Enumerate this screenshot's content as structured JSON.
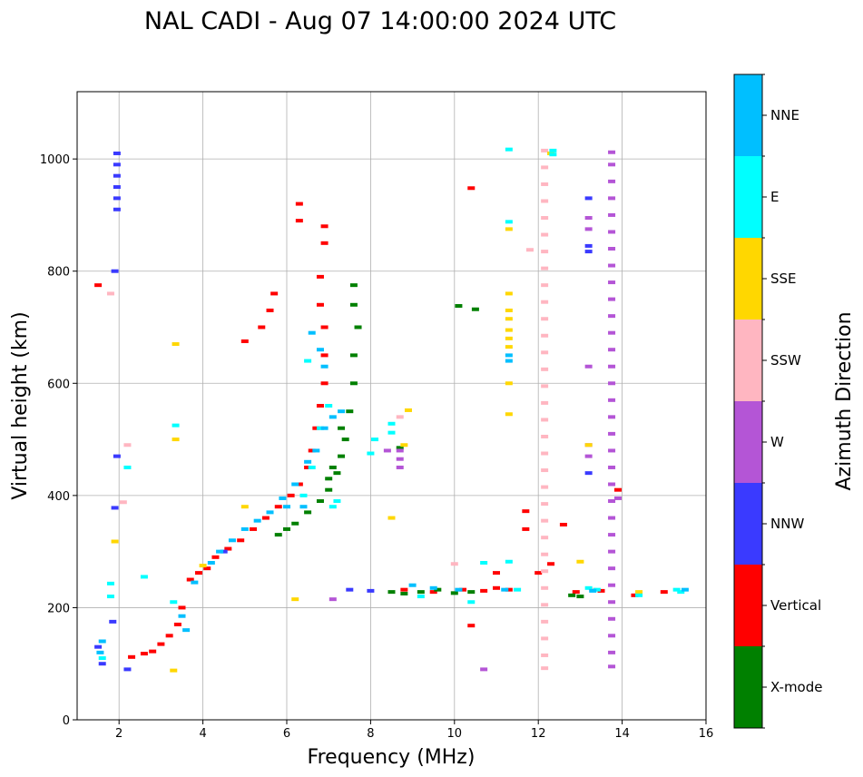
{
  "chart_data": {
    "type": "scatter",
    "title": "NAL CADI - Aug 07 14:00:00 2024 UTC",
    "xlabel": "Frequency (MHz)",
    "ylabel": "Virtual height (km)",
    "xlim": [
      1,
      16
    ],
    "ylim": [
      0,
      1120
    ],
    "xticks": [
      2,
      4,
      6,
      8,
      10,
      12,
      14,
      16
    ],
    "yticks": [
      0,
      200,
      400,
      600,
      800,
      1000
    ],
    "grid": true,
    "colorbar": {
      "label": "Azimuth Direction",
      "categories": [
        {
          "name": "X-mode",
          "color": "#008000"
        },
        {
          "name": "Vertical",
          "color": "#ff0000"
        },
        {
          "name": "NNW",
          "color": "#3a3aff"
        },
        {
          "name": "W",
          "color": "#b455d6"
        },
        {
          "name": "SSW",
          "color": "#ffb6c1"
        },
        {
          "name": "SSE",
          "color": "#ffd700"
        },
        {
          "name": "E",
          "color": "#00ffff"
        },
        {
          "name": "NNE",
          "color": "#00bfff"
        }
      ]
    },
    "series": [
      {
        "name": "Vertical",
        "color": "#ff0000",
        "points": [
          [
            2.3,
            112
          ],
          [
            2.6,
            118
          ],
          [
            2.8,
            122
          ],
          [
            3.0,
            135
          ],
          [
            3.2,
            150
          ],
          [
            3.4,
            170
          ],
          [
            3.5,
            200
          ],
          [
            3.7,
            250
          ],
          [
            3.9,
            262
          ],
          [
            4.1,
            270
          ],
          [
            4.3,
            290
          ],
          [
            4.6,
            305
          ],
          [
            4.9,
            320
          ],
          [
            5.2,
            340
          ],
          [
            5.5,
            360
          ],
          [
            5.8,
            380
          ],
          [
            6.1,
            400
          ],
          [
            6.3,
            420
          ],
          [
            6.5,
            450
          ],
          [
            6.6,
            480
          ],
          [
            6.7,
            520
          ],
          [
            6.8,
            560
          ],
          [
            6.9,
            600
          ],
          [
            6.9,
            650
          ],
          [
            6.9,
            700
          ],
          [
            6.8,
            740
          ],
          [
            6.8,
            790
          ],
          [
            6.9,
            850
          ],
          [
            6.3,
            890
          ],
          [
            6.3,
            920
          ],
          [
            6.9,
            880
          ],
          [
            5.4,
            700
          ],
          [
            5.6,
            730
          ],
          [
            5.7,
            760
          ],
          [
            5.0,
            675
          ],
          [
            1.5,
            775
          ],
          [
            8.8,
            232
          ],
          [
            9.5,
            228
          ],
          [
            10.2,
            232
          ],
          [
            10.7,
            230
          ],
          [
            11.0,
            235
          ],
          [
            11.3,
            232
          ],
          [
            12.9,
            228
          ],
          [
            13.5,
            230
          ],
          [
            14.3,
            222
          ],
          [
            15.0,
            228
          ],
          [
            11.0,
            262
          ],
          [
            12.0,
            262
          ],
          [
            12.3,
            278
          ],
          [
            11.7,
            340
          ],
          [
            11.7,
            372
          ],
          [
            12.6,
            348
          ],
          [
            10.4,
            168
          ],
          [
            10.4,
            948
          ],
          [
            13.9,
            410
          ]
        ]
      },
      {
        "name": "X-mode",
        "color": "#008000",
        "points": [
          [
            5.8,
            330
          ],
          [
            6.0,
            340
          ],
          [
            6.2,
            350
          ],
          [
            6.5,
            370
          ],
          [
            6.8,
            390
          ],
          [
            7.0,
            410
          ],
          [
            7.2,
            440
          ],
          [
            7.3,
            470
          ],
          [
            7.4,
            500
          ],
          [
            7.5,
            550
          ],
          [
            7.6,
            600
          ],
          [
            7.6,
            650
          ],
          [
            7.7,
            700
          ],
          [
            7.6,
            740
          ],
          [
            7.6,
            775
          ],
          [
            7.1,
            450
          ],
          [
            7.3,
            520
          ],
          [
            8.5,
            228
          ],
          [
            8.8,
            225
          ],
          [
            9.2,
            228
          ],
          [
            9.6,
            232
          ],
          [
            10.0,
            226
          ],
          [
            10.4,
            228
          ],
          [
            12.8,
            222
          ],
          [
            13.0,
            220
          ],
          [
            8.7,
            485
          ],
          [
            10.1,
            738
          ],
          [
            10.5,
            732
          ],
          [
            7.0,
            430
          ]
        ]
      },
      {
        "name": "NNW",
        "color": "#3a3aff",
        "points": [
          [
            1.95,
            1010
          ],
          [
            1.95,
            990
          ],
          [
            1.95,
            970
          ],
          [
            1.95,
            950
          ],
          [
            1.95,
            930
          ],
          [
            1.95,
            910
          ],
          [
            1.9,
            800
          ],
          [
            1.5,
            130
          ],
          [
            1.6,
            100
          ],
          [
            2.2,
            90
          ],
          [
            1.85,
            175
          ],
          [
            7.5,
            232
          ],
          [
            8.0,
            230
          ],
          [
            13.2,
            440
          ],
          [
            13.2,
            835
          ],
          [
            13.2,
            845
          ],
          [
            13.2,
            930
          ],
          [
            4.5,
            300
          ],
          [
            1.95,
            470
          ],
          [
            1.9,
            378
          ]
        ]
      },
      {
        "name": "W",
        "color": "#b455d6",
        "points": [
          [
            13.75,
            1012
          ],
          [
            13.75,
            990
          ],
          [
            13.75,
            960
          ],
          [
            13.75,
            930
          ],
          [
            13.75,
            900
          ],
          [
            13.75,
            870
          ],
          [
            13.75,
            840
          ],
          [
            13.75,
            810
          ],
          [
            13.75,
            780
          ],
          [
            13.75,
            750
          ],
          [
            13.75,
            720
          ],
          [
            13.75,
            690
          ],
          [
            13.75,
            660
          ],
          [
            13.75,
            630
          ],
          [
            13.75,
            600
          ],
          [
            13.75,
            570
          ],
          [
            13.75,
            540
          ],
          [
            13.75,
            510
          ],
          [
            13.75,
            480
          ],
          [
            13.75,
            450
          ],
          [
            13.75,
            420
          ],
          [
            13.75,
            390
          ],
          [
            13.75,
            360
          ],
          [
            13.75,
            330
          ],
          [
            13.75,
            300
          ],
          [
            13.75,
            270
          ],
          [
            13.75,
            240
          ],
          [
            13.75,
            210
          ],
          [
            13.75,
            180
          ],
          [
            13.75,
            150
          ],
          [
            13.75,
            120
          ],
          [
            13.75,
            95
          ],
          [
            8.7,
            480
          ],
          [
            8.7,
            465
          ],
          [
            8.7,
            450
          ],
          [
            13.2,
            490
          ],
          [
            13.2,
            470
          ],
          [
            13.2,
            630
          ],
          [
            13.2,
            895
          ],
          [
            13.2,
            875
          ],
          [
            8.4,
            480
          ],
          [
            7.1,
            215
          ],
          [
            10.7,
            90
          ],
          [
            13.9,
            395
          ]
        ]
      },
      {
        "name": "SSW",
        "color": "#ffb6c1",
        "points": [
          [
            12.15,
            1015
          ],
          [
            12.15,
            985
          ],
          [
            12.15,
            955
          ],
          [
            12.15,
            925
          ],
          [
            12.15,
            895
          ],
          [
            12.15,
            865
          ],
          [
            12.15,
            835
          ],
          [
            12.15,
            805
          ],
          [
            12.15,
            775
          ],
          [
            12.15,
            745
          ],
          [
            12.15,
            715
          ],
          [
            12.15,
            685
          ],
          [
            12.15,
            655
          ],
          [
            12.15,
            625
          ],
          [
            12.15,
            595
          ],
          [
            12.15,
            565
          ],
          [
            12.15,
            535
          ],
          [
            12.15,
            505
          ],
          [
            12.15,
            475
          ],
          [
            12.15,
            445
          ],
          [
            12.15,
            415
          ],
          [
            12.15,
            385
          ],
          [
            12.15,
            355
          ],
          [
            12.15,
            325
          ],
          [
            12.15,
            295
          ],
          [
            12.15,
            265
          ],
          [
            12.15,
            235
          ],
          [
            12.15,
            205
          ],
          [
            12.15,
            175
          ],
          [
            12.15,
            145
          ],
          [
            12.15,
            115
          ],
          [
            12.15,
            92
          ],
          [
            11.8,
            838
          ],
          [
            10.0,
            278
          ],
          [
            8.7,
            540
          ],
          [
            1.8,
            760
          ],
          [
            2.2,
            490
          ],
          [
            2.1,
            388
          ],
          [
            13.3,
            232
          ]
        ]
      },
      {
        "name": "SSE",
        "color": "#ffd700",
        "points": [
          [
            11.3,
            760
          ],
          [
            11.3,
            730
          ],
          [
            11.3,
            715
          ],
          [
            11.3,
            695
          ],
          [
            11.3,
            680
          ],
          [
            11.3,
            665
          ],
          [
            11.3,
            600
          ],
          [
            11.3,
            545
          ],
          [
            11.3,
            875
          ],
          [
            3.35,
            670
          ],
          [
            3.35,
            500
          ],
          [
            3.3,
            88
          ],
          [
            1.9,
            318
          ],
          [
            6.2,
            215
          ],
          [
            8.5,
            360
          ],
          [
            8.9,
            552
          ],
          [
            8.8,
            490
          ],
          [
            14.4,
            228
          ],
          [
            13.2,
            490
          ],
          [
            13.0,
            282
          ],
          [
            12.3,
            1010
          ],
          [
            4.0,
            275
          ],
          [
            5.0,
            380
          ]
        ]
      },
      {
        "name": "E",
        "color": "#00ffff",
        "points": [
          [
            12.35,
            1015
          ],
          [
            12.35,
            1008
          ],
          [
            11.3,
            888
          ],
          [
            11.3,
            1017
          ],
          [
            8.5,
            512
          ],
          [
            8.5,
            528
          ],
          [
            8.1,
            500
          ],
          [
            8.0,
            475
          ],
          [
            7.2,
            390
          ],
          [
            7.1,
            380
          ],
          [
            6.4,
            400
          ],
          [
            6.6,
            450
          ],
          [
            6.8,
            520
          ],
          [
            7.0,
            560
          ],
          [
            6.5,
            640
          ],
          [
            3.35,
            525
          ],
          [
            3.3,
            210
          ],
          [
            1.6,
            110
          ],
          [
            2.2,
            450
          ],
          [
            2.6,
            255
          ],
          [
            1.8,
            243
          ],
          [
            1.8,
            220
          ],
          [
            9.2,
            220
          ],
          [
            10.4,
            210
          ],
          [
            13.2,
            235
          ],
          [
            13.4,
            232
          ],
          [
            14.4,
            222
          ],
          [
            15.3,
            232
          ],
          [
            15.4,
            228
          ],
          [
            11.3,
            282
          ],
          [
            10.7,
            280
          ],
          [
            11.5,
            232
          ]
        ]
      },
      {
        "name": "NNE",
        "color": "#00bfff",
        "points": [
          [
            3.6,
            160
          ],
          [
            3.5,
            185
          ],
          [
            3.8,
            245
          ],
          [
            4.2,
            280
          ],
          [
            4.4,
            300
          ],
          [
            4.7,
            320
          ],
          [
            5.0,
            340
          ],
          [
            5.3,
            355
          ],
          [
            5.6,
            370
          ],
          [
            5.9,
            395
          ],
          [
            6.2,
            420
          ],
          [
            6.5,
            460
          ],
          [
            6.7,
            480
          ],
          [
            6.9,
            520
          ],
          [
            7.1,
            540
          ],
          [
            7.3,
            550
          ],
          [
            6.6,
            690
          ],
          [
            6.8,
            660
          ],
          [
            6.9,
            630
          ],
          [
            11.3,
            640
          ],
          [
            11.3,
            650
          ],
          [
            9.0,
            240
          ],
          [
            9.5,
            235
          ],
          [
            10.1,
            232
          ],
          [
            11.2,
            232
          ],
          [
            13.3,
            230
          ],
          [
            15.5,
            232
          ],
          [
            1.6,
            140
          ],
          [
            1.55,
            120
          ],
          [
            6.0,
            380
          ],
          [
            6.4,
            380
          ]
        ]
      }
    ]
  }
}
